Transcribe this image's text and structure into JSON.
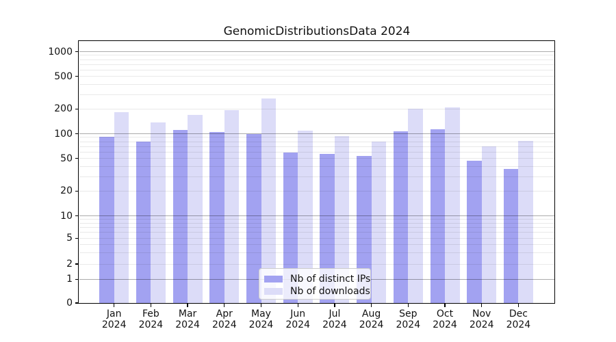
{
  "title": "GenomicDistributionsData 2024",
  "chart_data": {
    "type": "bar",
    "title": "GenomicDistributionsData 2024",
    "categories": [
      "Jan 2024",
      "Feb 2024",
      "Mar 2024",
      "Apr 2024",
      "May 2024",
      "Jun 2024",
      "Jul 2024",
      "Aug 2024",
      "Sep 2024",
      "Oct 2024",
      "Nov 2024",
      "Dec 2024"
    ],
    "series": [
      {
        "name": "Nb of distinct IPs",
        "color": "#a2a2f1",
        "values": [
          91,
          80,
          112,
          105,
          99,
          59,
          57,
          54,
          106,
          114,
          47,
          37
        ]
      },
      {
        "name": "Nb of downloads",
        "color": "#dcdcf8",
        "values": [
          183,
          138,
          170,
          193,
          270,
          108,
          94,
          80,
          200,
          210,
          70,
          82
        ]
      }
    ],
    "yscale": "symlog",
    "yticks": [
      0,
      1,
      2,
      5,
      10,
      20,
      50,
      100,
      200,
      500,
      1000
    ],
    "ylim": [
      0,
      1300
    ],
    "grid": true,
    "legend_position": "lower center"
  },
  "colors": {
    "axis": "#000000",
    "text": "#111111",
    "grid_minor": "rgba(0,0,0,0.085)",
    "grid_major": "rgba(0,0,0,0.33)"
  }
}
